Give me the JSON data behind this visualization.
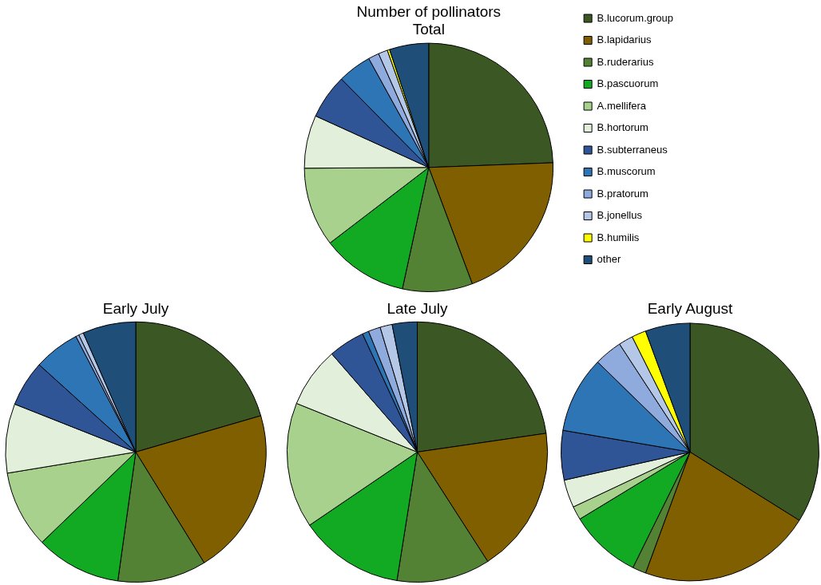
{
  "chart_data": [
    {
      "type": "pie",
      "title": "Number of pollinators",
      "subtitle": "Total",
      "legend": "right",
      "categories": [
        "B.lucorum.group",
        "B.lapidarius",
        "B.ruderarius",
        "B.pascuorum",
        "A.mellifera",
        "B.hortorum",
        "B.subterraneus",
        "B.muscorum",
        "B.pratorum",
        "B.jonellus",
        "B.humilis",
        "other"
      ],
      "values": [
        24.4,
        19.9,
        9.1,
        11.2,
        10.3,
        6.9,
        5.8,
        4.4,
        1.4,
        1.2,
        0.3,
        5.1
      ],
      "colors": [
        "#3a5724",
        "#7f5f00",
        "#548235",
        "#12aa22",
        "#a9d18e",
        "#e2efda",
        "#2f5597",
        "#2e75b6",
        "#8faadc",
        "#b4c7e7",
        "#ffff00",
        "#1f4e79"
      ]
    },
    {
      "type": "pie",
      "title": "Early July",
      "legend": false,
      "categories": [
        null,
        null,
        null,
        null,
        null,
        null,
        null,
        null,
        null,
        null,
        null,
        null
      ],
      "values": [
        20.5,
        20.7,
        11.0,
        10.6,
        9.6,
        8.6,
        5.7,
        5.7,
        0.4,
        0.6,
        0,
        6.6
      ],
      "colors": [
        "#3a5724",
        "#7f5f00",
        "#548235",
        "#12aa22",
        "#a9d18e",
        "#e2efda",
        "#2f5597",
        "#2e75b6",
        "#8faadc",
        "#b4c7e7",
        "#ffff00",
        "#1f4e79"
      ]
    },
    {
      "type": "pie",
      "title": "Late July",
      "legend": false,
      "categories": [
        null,
        null,
        null,
        null,
        null,
        null,
        null,
        null,
        null,
        null,
        null,
        null
      ],
      "values": [
        22.7,
        18.2,
        11.6,
        13.0,
        15.6,
        7.5,
        4.5,
        0.8,
        1.5,
        1.5,
        0,
        3.1
      ],
      "colors": [
        "#3a5724",
        "#7f5f00",
        "#548235",
        "#12aa22",
        "#a9d18e",
        "#e2efda",
        "#2f5597",
        "#2e75b6",
        "#8faadc",
        "#b4c7e7",
        "#ffff00",
        "#1f4e79"
      ]
    },
    {
      "type": "pie",
      "title": "Early August",
      "legend": false,
      "categories": [
        null,
        null,
        null,
        null,
        null,
        null,
        null,
        null,
        null,
        null,
        null,
        null
      ],
      "values": [
        33.9,
        21.7,
        1.7,
        9.0,
        1.7,
        3.5,
        6.2,
        9.6,
        3.5,
        1.8,
        1.8,
        5.6
      ],
      "colors": [
        "#3a5724",
        "#7f5f00",
        "#548235",
        "#12aa22",
        "#a9d18e",
        "#e2efda",
        "#2f5597",
        "#2e75b6",
        "#8faadc",
        "#b4c7e7",
        "#ffff00",
        "#1f4e79"
      ]
    }
  ]
}
